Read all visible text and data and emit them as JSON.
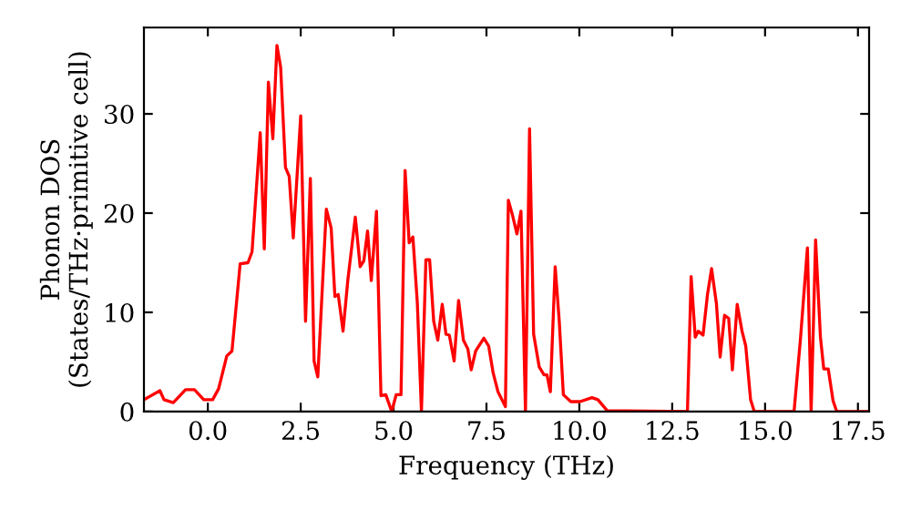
{
  "chart_data": {
    "type": "line",
    "xlabel": "Frequency (THz)",
    "ylabel": "Phonon DOS\n(States/THz·primitive cell)",
    "xlim": [
      -1.72,
      17.8
    ],
    "ylim": [
      0,
      38.7
    ],
    "xticks": [
      {
        "value": 0,
        "label": "0.0"
      },
      {
        "value": 2.5,
        "label": "2.5"
      },
      {
        "value": 5,
        "label": "5.0"
      },
      {
        "value": 7.5,
        "label": "7.5"
      },
      {
        "value": 10,
        "label": "10.0"
      },
      {
        "value": 12.5,
        "label": "12.5"
      },
      {
        "value": 15,
        "label": "15.0"
      },
      {
        "value": 17.5,
        "label": "17.5"
      }
    ],
    "yticks": [
      0,
      10,
      20,
      30
    ],
    "grid": false,
    "legend": false,
    "line_style": "solid",
    "marker": "none",
    "series": [
      {
        "color": "#ff0000",
        "x": [
          -1.72,
          -1.29,
          -1.18,
          -0.93,
          -0.6,
          -0.36,
          -0.11,
          0.13,
          0.29,
          0.51,
          0.65,
          0.87,
          1.08,
          1.19,
          1.41,
          1.52,
          1.63,
          1.75,
          1.86,
          1.96,
          2.09,
          2.19,
          2.3,
          2.5,
          2.63,
          2.76,
          2.86,
          2.96,
          3.19,
          3.32,
          3.42,
          3.51,
          3.64,
          3.77,
          3.97,
          4.1,
          4.2,
          4.3,
          4.4,
          4.54,
          4.66,
          4.79,
          4.95,
          5.07,
          5.2,
          5.31,
          5.42,
          5.52,
          5.64,
          5.75,
          5.87,
          5.97,
          6.08,
          6.19,
          6.31,
          6.41,
          6.5,
          6.63,
          6.75,
          6.88,
          7.0,
          7.09,
          7.21,
          7.43,
          7.56,
          7.68,
          7.81,
          8.01,
          8.09,
          8.2,
          8.32,
          8.43,
          8.55,
          8.66,
          8.77,
          8.92,
          9.05,
          9.13,
          9.22,
          9.35,
          9.46,
          9.57,
          9.77,
          10.02,
          10.34,
          10.5,
          10.75,
          12.91,
          13.01,
          13.12,
          13.2,
          13.33,
          13.45,
          13.56,
          13.69,
          13.79,
          13.91,
          14.02,
          14.12,
          14.25,
          14.38,
          14.48,
          14.61,
          14.71,
          15.78,
          15.95,
          16.14,
          16.24,
          16.36,
          16.49,
          16.58,
          16.7,
          16.83,
          16.93,
          17.8
        ],
        "values": [
          1.2,
          2.1,
          1.2,
          0.9,
          2.2,
          2.2,
          1.2,
          1.2,
          2.3,
          5.6,
          6.1,
          14.9,
          15.0,
          16.1,
          28.1,
          16.4,
          33.2,
          27.5,
          36.9,
          34.7,
          24.6,
          23.7,
          17.5,
          29.8,
          9.1,
          23.5,
          5.1,
          3.5,
          20.4,
          18.5,
          11.6,
          11.8,
          8.1,
          13.3,
          19.6,
          14.6,
          15.2,
          18.2,
          13.2,
          20.2,
          1.6,
          1.7,
          0,
          1.7,
          1.7,
          24.3,
          17.0,
          17.6,
          10.9,
          0,
          15.3,
          15.3,
          9.1,
          7.2,
          10.8,
          7.8,
          7.7,
          5.1,
          11.2,
          7.2,
          6.3,
          4.2,
          6.1,
          7.4,
          6.6,
          3.9,
          2.0,
          0.5,
          21.3,
          19.8,
          17.9,
          20.2,
          0,
          28.5,
          7.8,
          4.5,
          3.7,
          3.7,
          2.0,
          14.6,
          9.1,
          1.7,
          1.0,
          1.0,
          1.4,
          1.2,
          0.1,
          0,
          13.6,
          7.5,
          8.1,
          7.7,
          11.8,
          14.4,
          10.9,
          5.5,
          9.7,
          9.4,
          4.2,
          10.8,
          8.1,
          6.6,
          1.2,
          0,
          0,
          7.2,
          16.5,
          0,
          17.3,
          7.5,
          4.3,
          4.3,
          1.1,
          0,
          0
        ]
      }
    ]
  }
}
